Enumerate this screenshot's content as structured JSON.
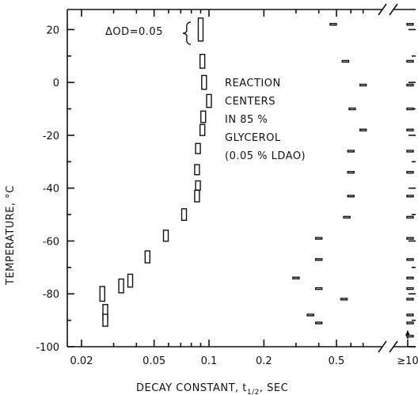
{
  "chart_data": {
    "type": "scatter",
    "xlabel": "DECAY CONSTANT, t",
    "xlabel_subscript": "1/2",
    "xlabel_unit": ", SEC",
    "ylabel": "TEMPERATURE, °C",
    "x_scale": "log",
    "xlim": [
      0.016,
      0.8
    ],
    "ylim": [
      -100,
      27
    ],
    "x_ticks": [
      {
        "value": 0.02,
        "label": "0.02"
      },
      {
        "value": 0.05,
        "label": "0.05"
      },
      {
        "value": 0.1,
        "label": "0.1"
      },
      {
        "value": 0.2,
        "label": "0.2"
      },
      {
        "value": 0.5,
        "label": "0.5"
      }
    ],
    "x_break_tick_label": "≥10",
    "y_ticks": [
      {
        "value": 20,
        "label": "20"
      },
      {
        "value": 0,
        "label": "0"
      },
      {
        "value": -20,
        "label": "-20"
      },
      {
        "value": -40,
        "label": "-40"
      },
      {
        "value": -60,
        "label": "-60"
      },
      {
        "value": -80,
        "label": "-80"
      },
      {
        "value": -100,
        "label": "-100"
      }
    ],
    "axis_break": true,
    "grid": false,
    "annotations": {
      "scale_bar": "ΔOD=0.05",
      "sample_lines": [
        "REACTION",
        "CENTERS",
        "IN 85 %",
        "GLYCEROL",
        "(0.05 % LDAO)"
      ]
    },
    "series": [
      {
        "kind": "fast",
        "points": [
          {
            "x": 0.09,
            "y": 20,
            "amp": 0.05
          },
          {
            "x": 0.092,
            "y": 8,
            "amp": 0.03
          },
          {
            "x": 0.094,
            "y": 0,
            "amp": 0.03
          },
          {
            "x": 0.1,
            "y": -7,
            "amp": 0.028
          },
          {
            "x": 0.093,
            "y": -13,
            "amp": 0.025
          },
          {
            "x": 0.092,
            "y": -18,
            "amp": 0.024
          },
          {
            "x": 0.087,
            "y": -25,
            "amp": 0.022
          },
          {
            "x": 0.086,
            "y": -33,
            "amp": 0.022
          },
          {
            "x": 0.087,
            "y": -39,
            "amp": 0.02
          },
          {
            "x": 0.086,
            "y": -43,
            "amp": 0.025
          },
          {
            "x": 0.073,
            "y": -50,
            "amp": 0.025
          },
          {
            "x": 0.058,
            "y": -58,
            "amp": 0.024
          },
          {
            "x": 0.046,
            "y": -66,
            "amp": 0.026
          },
          {
            "x": 0.037,
            "y": -75,
            "amp": 0.028
          },
          {
            "x": 0.033,
            "y": -77,
            "amp": 0.03
          },
          {
            "x": 0.026,
            "y": -80,
            "amp": 0.032
          },
          {
            "x": 0.027,
            "y": -87,
            "amp": 0.034
          },
          {
            "x": 0.027,
            "y": -90,
            "amp": 0.026
          }
        ]
      },
      {
        "kind": "slow",
        "points": [
          {
            "x": 0.48,
            "y": 22,
            "amp": 0.003
          },
          {
            "x": 0.56,
            "y": 8,
            "amp": 0.003
          },
          {
            "x": 0.7,
            "y": -1,
            "amp": 0.002
          },
          {
            "x": 0.61,
            "y": -10,
            "amp": 0.001
          },
          {
            "x": 0.7,
            "y": -18,
            "amp": 0.002
          },
          {
            "x": 0.6,
            "y": -26,
            "amp": 0.001
          },
          {
            "x": 0.6,
            "y": -34,
            "amp": 0.001
          },
          {
            "x": 0.6,
            "y": -43,
            "amp": 0.002
          },
          {
            "x": 0.57,
            "y": -51,
            "amp": 0.002
          },
          {
            "x": 0.4,
            "y": -59,
            "amp": 0.002
          },
          {
            "x": 0.4,
            "y": -67,
            "amp": 0.003
          },
          {
            "x": 0.3,
            "y": -74,
            "amp": 0.001
          },
          {
            "x": 0.4,
            "y": -78,
            "amp": 0.002
          },
          {
            "x": 0.55,
            "y": -82,
            "amp": 0.001
          },
          {
            "x": 0.36,
            "y": -88,
            "amp": 0.001
          },
          {
            "x": 0.4,
            "y": -91,
            "amp": 0.001
          }
        ]
      },
      {
        "kind": "very-slow",
        "x_label": "≥10",
        "points": [
          {
            "y": 22,
            "amp": 0.003
          },
          {
            "y": 8,
            "amp": 0.003
          },
          {
            "y": -1,
            "amp": 0.003
          },
          {
            "y": -10,
            "amp": 0.003
          },
          {
            "y": -18,
            "amp": 0.003
          },
          {
            "y": -26,
            "amp": 0.003
          },
          {
            "y": -34,
            "amp": 0.003
          },
          {
            "y": -43,
            "amp": 0.003
          },
          {
            "y": -51,
            "amp": 0.003
          },
          {
            "y": -59,
            "amp": 0.002
          },
          {
            "y": -67,
            "amp": 0.002
          },
          {
            "y": -74,
            "amp": 0.002
          },
          {
            "y": -78,
            "amp": 0.002
          },
          {
            "y": -82,
            "amp": 0.002
          },
          {
            "y": -88,
            "amp": 0.001
          },
          {
            "y": -91,
            "amp": 0.001
          },
          {
            "y": -96,
            "amp": 0.001
          }
        ]
      }
    ]
  }
}
